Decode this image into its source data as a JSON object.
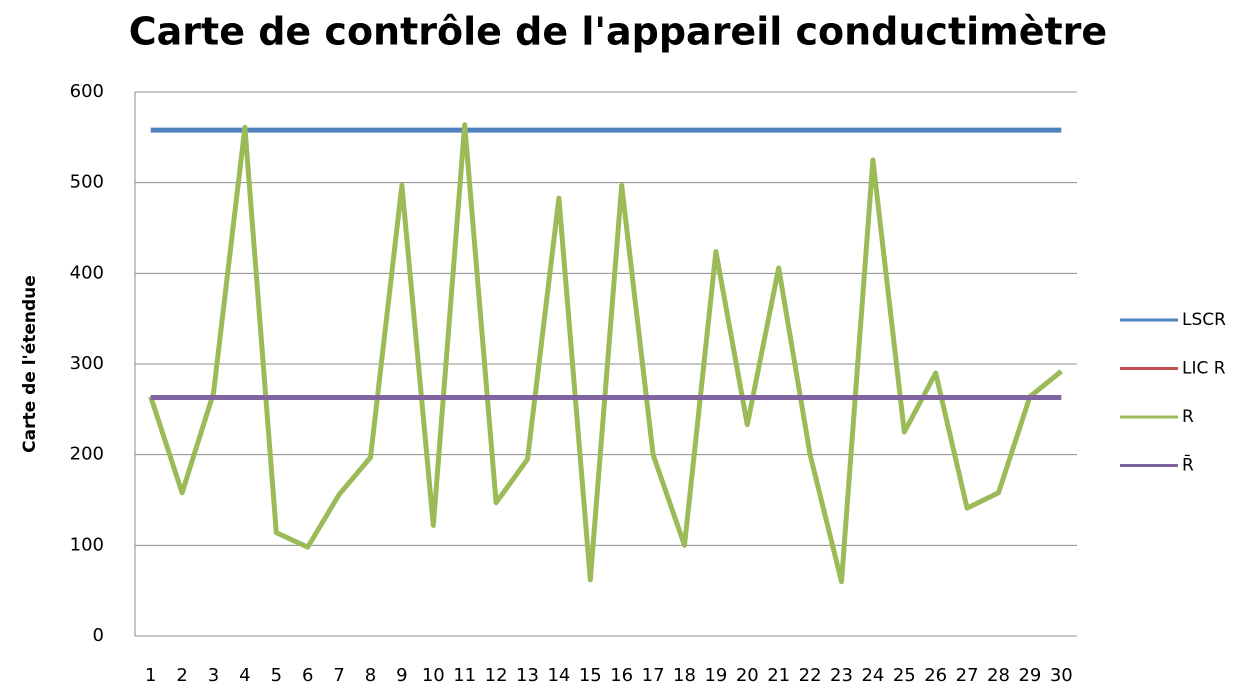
{
  "chart_data": {
    "type": "line",
    "title": "Carte de contrôle de l'appareil conductimètre",
    "y_label": "Carte de l'étendue",
    "categories": [
      "1",
      "2",
      "3",
      "4",
      "5",
      "6",
      "7",
      "8",
      "9",
      "10",
      "11",
      "12",
      "13",
      "14",
      "15",
      "16",
      "17",
      "18",
      "19",
      "20",
      "21",
      "22",
      "23",
      "24",
      "25",
      "26",
      "27",
      "28",
      "29",
      "30"
    ],
    "ylim": [
      0,
      600
    ],
    "yticks": [
      0,
      100,
      200,
      300,
      400,
      500,
      600
    ],
    "grid": true,
    "legend": "right",
    "series": [
      {
        "name": "LSCR",
        "color": "#4f81bd",
        "values": [
          558,
          558,
          558,
          558,
          558,
          558,
          558,
          558,
          558,
          558,
          558,
          558,
          558,
          558,
          558,
          558,
          558,
          558,
          558,
          558,
          558,
          558,
          558,
          558,
          558,
          558,
          558,
          558,
          558,
          558
        ]
      },
      {
        "name": "LIC R",
        "color": "#c0504d",
        "values": [
          null,
          null,
          null,
          null,
          null,
          null,
          null,
          null,
          null,
          null,
          null,
          null,
          null,
          null,
          null,
          null,
          null,
          null,
          null,
          null,
          null,
          null,
          null,
          null,
          null,
          null,
          null,
          null,
          null,
          null
        ]
      },
      {
        "name": "R",
        "color": "#9bbb59",
        "values": [
          264,
          158,
          268,
          561,
          114,
          98,
          156,
          197,
          497,
          122,
          564,
          147,
          195,
          483,
          62,
          497,
          200,
          100,
          424,
          233,
          406,
          200,
          60,
          525,
          225,
          290,
          141,
          158,
          264,
          292
        ]
      },
      {
        "name": "R̄",
        "color": "#8064a2",
        "values": [
          263,
          263,
          263,
          263,
          263,
          263,
          263,
          263,
          263,
          263,
          263,
          263,
          263,
          263,
          263,
          263,
          263,
          263,
          263,
          263,
          263,
          263,
          263,
          263,
          263,
          263,
          263,
          263,
          263,
          263
        ]
      }
    ]
  }
}
